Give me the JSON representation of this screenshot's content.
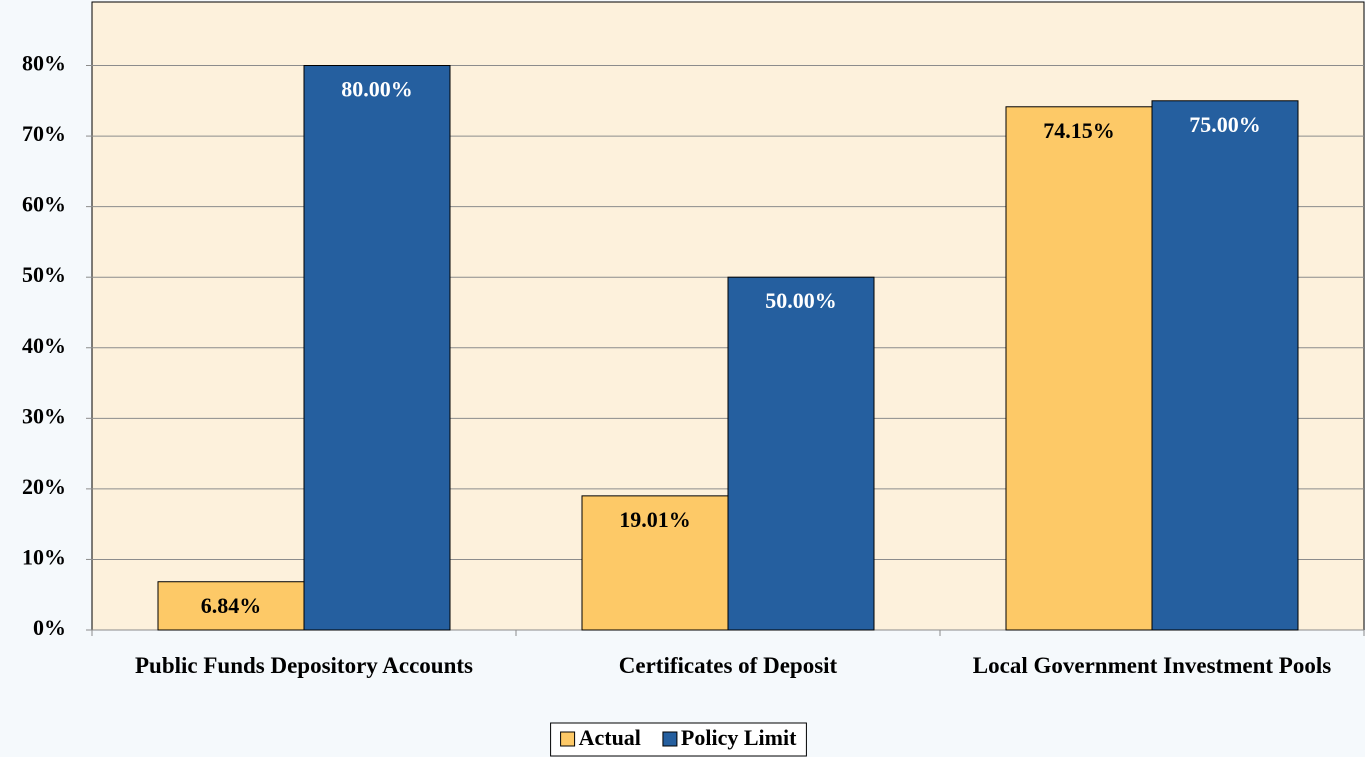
{
  "chart_data": {
    "type": "bar",
    "categories": [
      "Public Funds Depository Accounts",
      "Certificates of Deposit",
      "Local Government Investment Pools"
    ],
    "series": [
      {
        "name": "Actual",
        "color": "#fdc967",
        "values": [
          6.84,
          19.01,
          74.15
        ],
        "value_labels": [
          "6.84%",
          "19.01%",
          "74.15%"
        ]
      },
      {
        "name": "Policy Limit",
        "color": "#255f9f",
        "values": [
          80,
          50,
          75
        ],
        "value_labels": [
          "80.00%",
          "50.00%",
          "75.00%"
        ]
      }
    ],
    "ylim": [
      0,
      89
    ],
    "yticks": [
      {
        "value": 0,
        "label": "0%"
      },
      {
        "value": 10,
        "label": "10%"
      },
      {
        "value": 20,
        "label": "20%"
      },
      {
        "value": 30,
        "label": "30%"
      },
      {
        "value": 40,
        "label": "40%"
      },
      {
        "value": 50,
        "label": "50%"
      },
      {
        "value": 60,
        "label": "60%"
      },
      {
        "value": 70,
        "label": "70%"
      },
      {
        "value": 80,
        "label": "80%"
      }
    ],
    "grid": true,
    "legend": "bottom"
  }
}
